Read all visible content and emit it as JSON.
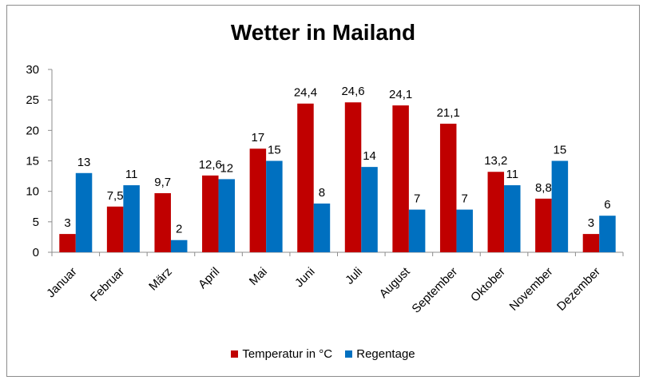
{
  "chart_data": {
    "type": "bar",
    "title": "Wetter in Mailand",
    "categories": [
      "Januar",
      "Februar",
      "März",
      "April",
      "Mai",
      "Juni",
      "Juli",
      "August",
      "September",
      "Oktober",
      "November",
      "Dezember"
    ],
    "series": [
      {
        "name": "Temperatur in °C",
        "color": "#c00000",
        "values": [
          3,
          7.5,
          9.7,
          12.6,
          17,
          24.4,
          24.6,
          24.1,
          21.1,
          13.2,
          8.8,
          3
        ],
        "labels": [
          "3",
          "7,5",
          "9,7",
          "12,6",
          "17",
          "24,4",
          "24,6",
          "24,1",
          "21,1",
          "13,2",
          "8,8",
          "3"
        ]
      },
      {
        "name": "Regentage",
        "color": "#0070c0",
        "values": [
          13,
          11,
          2,
          12,
          15,
          8,
          14,
          7,
          7,
          11,
          15,
          6
        ],
        "labels": [
          "13",
          "11",
          "2",
          "12",
          "15",
          "8",
          "14",
          "7",
          "7",
          "11",
          "15",
          "6"
        ]
      }
    ],
    "yticks": [
      0,
      5,
      10,
      15,
      20,
      25,
      30
    ],
    "ylim": [
      0,
      30
    ],
    "grid": false,
    "legend_position": "bottom"
  }
}
